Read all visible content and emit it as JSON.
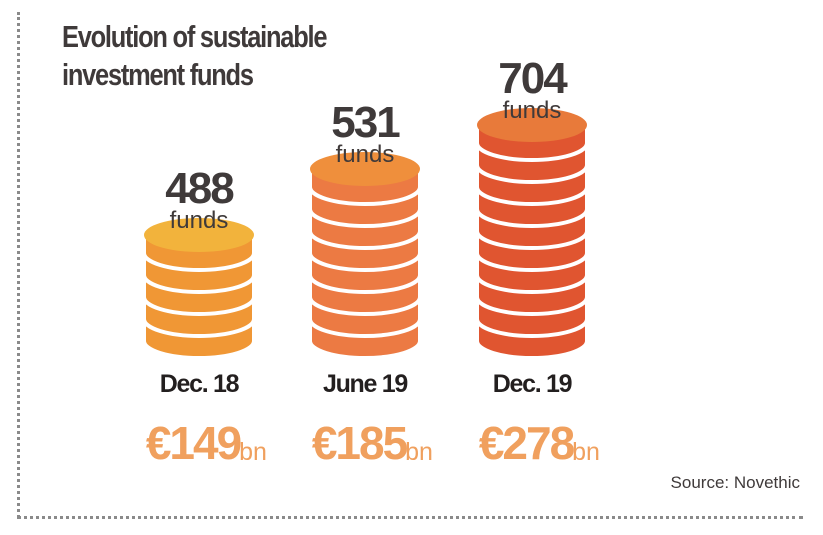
{
  "chart_data": {
    "type": "bar",
    "title_line1": "Evolution of sustainable",
    "title_line2": "investment funds",
    "categories": [
      "Dec. 18",
      "June 19",
      "Dec. 19"
    ],
    "series": [
      {
        "values": [
          488,
          531,
          704
        ],
        "unit_label": "funds",
        "coin_layers": [
          5,
          8,
          10
        ]
      },
      {
        "values": [
          149,
          185,
          278
        ],
        "currency": "€",
        "unit_label": "bn"
      }
    ],
    "colors": {
      "coin_side": [
        "#f09735",
        "#ec7a43",
        "#e05530"
      ],
      "coin_top": [
        "#f2b33c",
        "#ef8f3c",
        "#e87a3a"
      ],
      "amount": "#f0a05e",
      "text": "#3f3a3a"
    },
    "source": "Source: Novethic"
  }
}
